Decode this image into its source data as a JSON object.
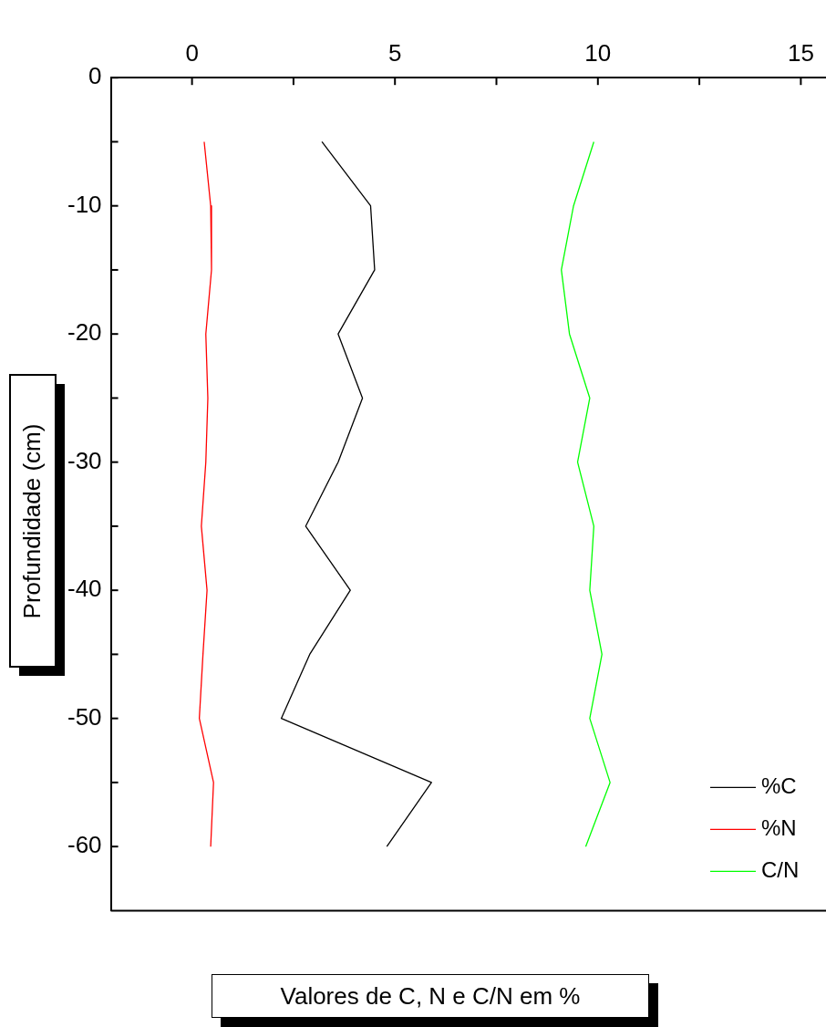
{
  "chart_data": {
    "type": "line",
    "xlabel": "Valores de C, N e C/N em %",
    "ylabel": "Profundidade (cm)",
    "xlim": [
      -2,
      15.8
    ],
    "xticks": [
      0,
      {
        "value": 2.5,
        "label": null
      },
      5,
      {
        "value": 7.5,
        "label": null
      },
      10,
      {
        "value": 12.5,
        "label": null
      },
      15
    ],
    "ylim": [
      -65,
      0
    ],
    "yticks": [
      0,
      {
        "value": -5,
        "label": null
      },
      -10,
      {
        "value": -15,
        "label": null
      },
      -20,
      {
        "value": -25,
        "label": null
      },
      -30,
      {
        "value": -35,
        "label": null
      },
      -40,
      {
        "value": -45,
        "label": null
      },
      -50,
      {
        "value": -55,
        "label": null
      },
      -60
    ],
    "grid": false,
    "legend": "bottom right",
    "marker": "none",
    "line_style": "solid",
    "series": [
      {
        "name": "%C",
        "color": "#000000",
        "x": [
          3.2,
          4.4,
          4.5,
          3.6,
          4.2,
          3.6,
          2.8,
          3.9,
          2.9,
          2.2,
          5.9,
          4.8
        ],
        "values": [
          -5,
          -10,
          -15,
          -20,
          -25,
          -30,
          -35,
          -40,
          -45,
          -50,
          -55,
          -60
        ]
      },
      {
        "name": "%N",
        "color": "#ff0000",
        "x": [
          0.3,
          0.46,
          0.48,
          0.34,
          0.39,
          0.34,
          0.23,
          0.37,
          0.27,
          0.18,
          0.53,
          0.46
        ],
        "values": [
          -5,
          -10,
          -15,
          -20,
          -25,
          -30,
          -35,
          -40,
          -45,
          -50,
          -55,
          -60
        ]
      },
      {
        "name": "C/N",
        "color": "#00ff00",
        "x": [
          9.9,
          9.4,
          9.1,
          9.3,
          9.8,
          9.5,
          9.9,
          9.8,
          10.1,
          9.8,
          10.3,
          9.7
        ],
        "values": [
          -5,
          -10,
          -15,
          -20,
          -25,
          -30,
          -35,
          -40,
          -45,
          -50,
          -55,
          -60
        ]
      }
    ]
  }
}
